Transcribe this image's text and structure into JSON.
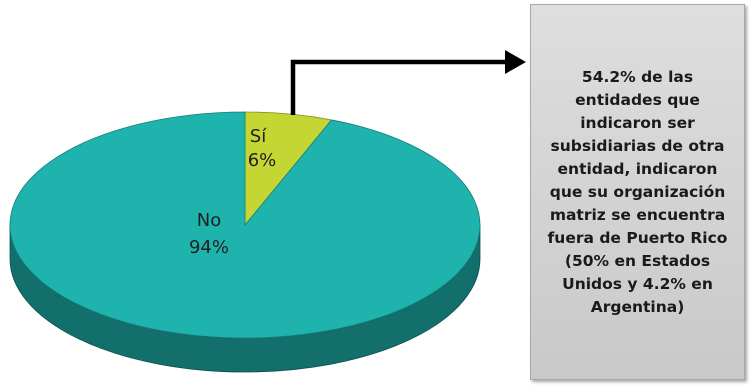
{
  "chart_data": {
    "type": "pie",
    "categories": [
      "Sí",
      "No"
    ],
    "values": [
      6,
      94
    ],
    "labels": [
      {
        "category": "Sí",
        "percent": "6%"
      },
      {
        "category": "No",
        "percent": "94%"
      }
    ],
    "colors": {
      "Sí": "#c3d633",
      "No": "#1fb3ad"
    },
    "title": "",
    "legend": "none",
    "style": "3d",
    "annotation": "54.2% de las entidades que indicaron ser subsidiarias de otra entidad, indicaron que su organización matriz se encuentra fuera de Puerto Rico (50% en Estados Unidos y 4.2% en Argentina)"
  }
}
